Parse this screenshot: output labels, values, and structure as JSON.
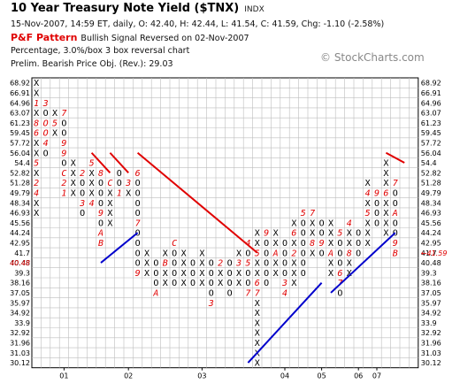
{
  "header": {
    "title": "10 Year Treasury Note Yield ($TNX)",
    "exchange": "INDX",
    "quote": "15-Nov-2007, 14:59 ET, daily, O: 42.40, H: 42.44, L: 41.54, C: 41.59, Chg: -1.10 (-2.58%)",
    "pattern_label": "P&F Pattern",
    "pattern_text": "Bullish Signal Reversed on 02-Nov-2007",
    "box_info": "Percentage, 3.0%/box 3 box reversal chart",
    "price_obj": "Prelim. Bearish Price Obj. (Rev.): 29.03",
    "brand": "© StockCharts.com"
  },
  "chart_data": {
    "type": "point-and-figure",
    "box_pct": 3.0,
    "reversal": 3,
    "y_levels": [
      "68.92",
      "66.91",
      "64.96",
      "63.07",
      "61.23",
      "59.45",
      "57.72",
      "56.04",
      "54.4",
      "52.82",
      "51.28",
      "49.79",
      "48.34",
      "46.93",
      "45.56",
      "44.24",
      "42.95",
      "41.7",
      "40.48",
      "39.3",
      "38.16",
      "37.05",
      "35.97",
      "34.92",
      "33.9",
      "32.92",
      "31.96",
      "31.03",
      "30.12"
    ],
    "last_price_left": "40.48",
    "last_price_right": "41.59",
    "x_labels": [
      {
        "col": 3,
        "text": "01"
      },
      {
        "col": 10,
        "text": "02"
      },
      {
        "col": 18,
        "text": "03"
      },
      {
        "col": 27,
        "text": "04"
      },
      {
        "col": 31,
        "text": "05"
      },
      {
        "col": 35,
        "text": "06"
      },
      {
        "col": 37,
        "text": "07"
      }
    ],
    "columns": [
      {
        "col": 0,
        "type": "X",
        "top": 68.92,
        "bottom": 46.93,
        "marks": {
          "64.96": "1",
          "61.23": "8",
          "59.45": "6",
          "54.4": "5",
          "51.28": "2",
          "49.79": "4"
        }
      },
      {
        "col": 1,
        "type": "O",
        "top": 64.96,
        "bottom": 56.04,
        "marks": {
          "64.96": "3",
          "61.23": "O",
          "59.45": "O",
          "57.72": "4"
        }
      },
      {
        "col": 2,
        "type": "X",
        "top": 63.07,
        "bottom": 59.45,
        "marks": {
          "61.23": "5"
        }
      },
      {
        "col": 3,
        "type": "O",
        "top": 63.07,
        "bottom": 49.79,
        "marks": {
          "63.07": "7",
          "57.72": "9",
          "56.04": "9",
          "52.82": "C",
          "51.28": "2",
          "49.79": "1"
        }
      },
      {
        "col": 4,
        "type": "X",
        "top": 54.4,
        "bottom": 49.79,
        "marks": {}
      },
      {
        "col": 5,
        "type": "O",
        "top": 52.82,
        "bottom": 46.93,
        "marks": {
          "52.82": "2",
          "48.34": "3"
        }
      },
      {
        "col": 6,
        "type": "X",
        "top": 54.4,
        "bottom": 48.34,
        "marks": {
          "54.4": "5",
          "48.34": "4"
        }
      },
      {
        "col": 7,
        "type": "O",
        "top": 52.82,
        "bottom": 42.95,
        "marks": {
          "52.82": "8",
          "46.93": "9",
          "44.24": "A",
          "42.95": "B"
        }
      },
      {
        "col": 8,
        "type": "X",
        "top": 51.28,
        "bottom": 45.56,
        "marks": {
          "51.28": "C"
        }
      },
      {
        "col": 9,
        "type": "O",
        "top": 52.82,
        "bottom": 49.79,
        "marks": {
          "49.79": "1"
        }
      },
      {
        "col": 10,
        "type": "X",
        "top": 51.28,
        "bottom": 49.79,
        "marks": {
          "51.28": "3"
        }
      },
      {
        "col": 11,
        "type": "O",
        "top": 52.82,
        "bottom": 39.3,
        "marks": {
          "52.82": "6",
          "45.56": "7",
          "39.3": "9"
        }
      },
      {
        "col": 12,
        "type": "X",
        "top": 41.7,
        "bottom": 39.3,
        "marks": {}
      },
      {
        "col": 13,
        "type": "O",
        "top": 40.48,
        "bottom": 37.05,
        "marks": {
          "37.05": "A"
        }
      },
      {
        "col": 14,
        "type": "X",
        "top": 41.7,
        "bottom": 38.16,
        "marks": {
          "40.48": "B"
        }
      },
      {
        "col": 15,
        "type": "O",
        "top": 42.95,
        "bottom": 38.16,
        "marks": {
          "42.95": "C"
        }
      },
      {
        "col": 16,
        "type": "X",
        "top": 41.7,
        "bottom": 38.16,
        "marks": {}
      },
      {
        "col": 17,
        "type": "O",
        "top": 40.48,
        "bottom": 38.16,
        "marks": {}
      },
      {
        "col": 18,
        "type": "X",
        "top": 41.7,
        "bottom": 38.16,
        "marks": {}
      },
      {
        "col": 19,
        "type": "O",
        "top": 40.48,
        "bottom": 35.97,
        "marks": {
          "35.97": "3"
        }
      },
      {
        "col": 20,
        "type": "X",
        "top": 40.48,
        "bottom": 38.16,
        "marks": {
          "40.48": "2"
        }
      },
      {
        "col": 21,
        "type": "O",
        "top": 40.48,
        "bottom": 37.05,
        "marks": {}
      },
      {
        "col": 22,
        "type": "X",
        "top": 41.7,
        "bottom": 38.16,
        "marks": {
          "40.48": "3"
        }
      },
      {
        "col": 23,
        "type": "O",
        "top": 42.95,
        "bottom": 37.05,
        "marks": {
          "42.95": "4",
          "40.48": "5",
          "37.05": "7"
        }
      },
      {
        "col": 24,
        "type": "X",
        "top": 44.24,
        "bottom": 30.12,
        "marks": {
          "41.7": "5",
          "38.16": "6",
          "37.05": "7"
        }
      },
      {
        "col": 25,
        "type": "O",
        "top": 44.24,
        "bottom": 38.16,
        "marks": {
          "44.24": "9"
        }
      },
      {
        "col": 26,
        "type": "X",
        "top": 44.24,
        "bottom": 39.3,
        "marks": {
          "41.7": "A"
        }
      },
      {
        "col": 27,
        "type": "O",
        "top": 42.95,
        "bottom": 37.05,
        "marks": {
          "38.16": "3",
          "37.05": "4"
        }
      },
      {
        "col": 28,
        "type": "X",
        "top": 45.56,
        "bottom": 38.16,
        "marks": {
          "44.24": "6",
          "41.7": "2"
        }
      },
      {
        "col": 29,
        "type": "O",
        "top": 46.93,
        "bottom": 39.3,
        "marks": {
          "46.93": "5"
        }
      },
      {
        "col": 30,
        "type": "X",
        "top": 46.93,
        "bottom": 41.7,
        "marks": {
          "46.93": "7",
          "42.95": "8"
        }
      },
      {
        "col": 31,
        "type": "O",
        "top": 45.56,
        "bottom": 41.7,
        "marks": {
          "42.95": "9"
        }
      },
      {
        "col": 32,
        "type": "X",
        "top": 45.56,
        "bottom": 39.3,
        "marks": {
          "41.7": "A"
        }
      },
      {
        "col": 33,
        "type": "O",
        "top": 44.24,
        "bottom": 37.05,
        "marks": {
          "44.24": "5",
          "39.3": "6",
          "38.16": "7"
        }
      },
      {
        "col": 34,
        "type": "X",
        "top": 45.56,
        "bottom": 39.3,
        "marks": {
          "45.56": "4",
          "41.7": "8"
        }
      },
      {
        "col": 35,
        "type": "O",
        "top": 44.24,
        "bottom": 41.7,
        "marks": {}
      },
      {
        "col": 36,
        "type": "X",
        "top": 51.28,
        "bottom": 42.95,
        "marks": {
          "49.79": "4",
          "46.93": "5"
        }
      },
      {
        "col": 37,
        "type": "O",
        "top": 49.79,
        "bottom": 45.56,
        "marks": {
          "49.79": "9"
        }
      },
      {
        "col": 38,
        "type": "X",
        "top": 54.4,
        "bottom": 44.24,
        "marks": {
          "49.79": "6"
        }
      },
      {
        "col": 39,
        "type": "O",
        "top": 51.28,
        "bottom": 41.7,
        "marks": {
          "51.28": "7",
          "46.93": "A",
          "42.95": "9",
          "41.7": "B"
        }
      }
    ],
    "trendlines": [
      {
        "color": "#e00000",
        "kind": "resistance",
        "from": {
          "col": 6,
          "price": 56.04
        },
        "to": {
          "col": 8,
          "price": 52.82
        }
      },
      {
        "color": "#e00000",
        "kind": "resistance",
        "from": {
          "col": 8,
          "price": 56.04
        },
        "to": {
          "col": 10,
          "price": 52.82
        }
      },
      {
        "color": "#e00000",
        "kind": "resistance",
        "from": {
          "col": 11,
          "price": 56.04
        },
        "to": {
          "col": 24,
          "price": 41.7
        }
      },
      {
        "color": "#e00000",
        "kind": "resistance",
        "from": {
          "col": 38,
          "price": 56.04
        },
        "to": {
          "col": 40,
          "price": 54.4
        }
      },
      {
        "color": "#0000cc",
        "kind": "support",
        "from": {
          "col": 7,
          "price": 40.48
        },
        "to": {
          "col": 11,
          "price": 44.24
        }
      },
      {
        "color": "#0000cc",
        "kind": "support",
        "from": {
          "col": 23,
          "price": 30.12
        },
        "to": {
          "col": 31,
          "price": 38.16
        }
      },
      {
        "color": "#0000cc",
        "kind": "support",
        "from": {
          "col": 32,
          "price": 37.05
        },
        "to": {
          "col": 39,
          "price": 44.24
        }
      }
    ]
  }
}
